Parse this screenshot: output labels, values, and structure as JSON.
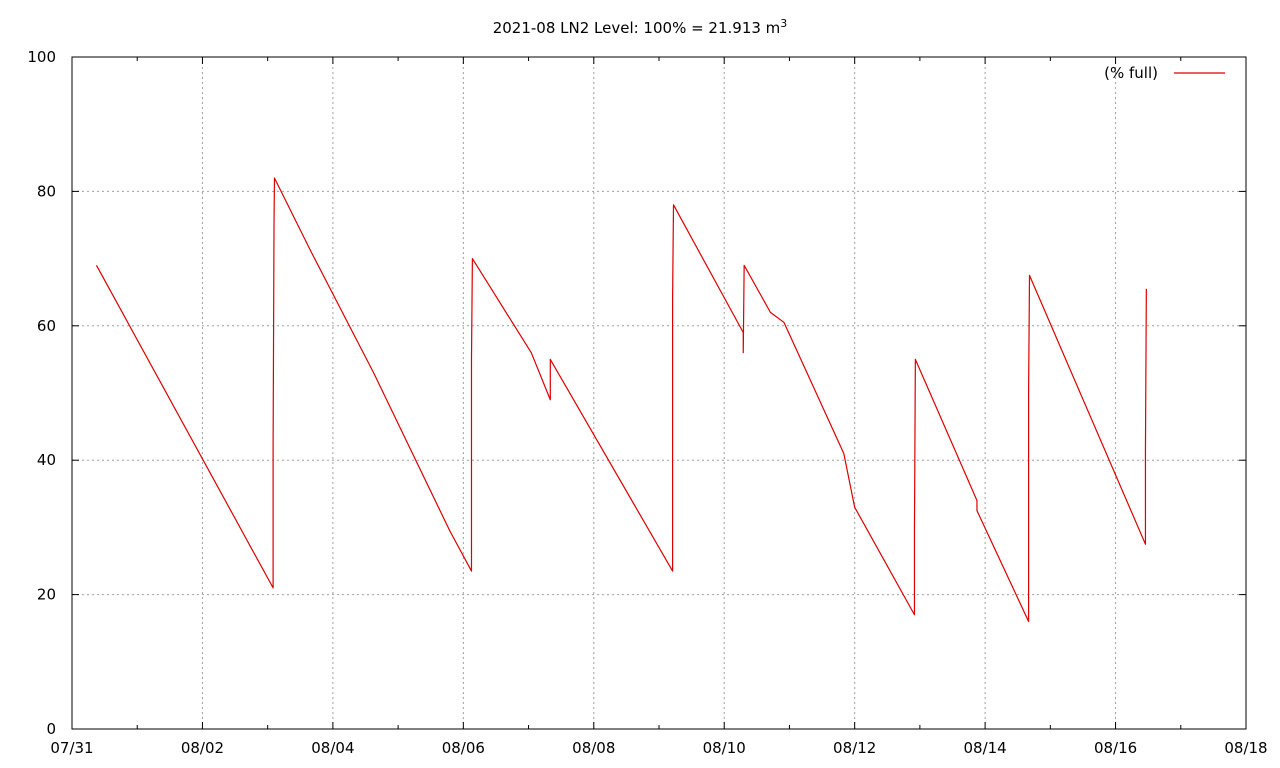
{
  "chart_data": {
    "type": "line",
    "title": {
      "main": "2021-08 LN2 Level: 100% = 21.913 m",
      "superscript": "3"
    },
    "xlabel": "",
    "ylabel": "",
    "x_unit": "date (month/day, 2021)",
    "xlim": [
      "2021-07-31",
      "2021-08-18"
    ],
    "ylim": [
      0,
      100
    ],
    "x_ticks": [
      {
        "date": "2021-07-31",
        "label": "07/31"
      },
      {
        "date": "2021-08-02",
        "label": "08/02"
      },
      {
        "date": "2021-08-04",
        "label": "08/04"
      },
      {
        "date": "2021-08-06",
        "label": "08/06"
      },
      {
        "date": "2021-08-08",
        "label": "08/08"
      },
      {
        "date": "2021-08-10",
        "label": "08/10"
      },
      {
        "date": "2021-08-12",
        "label": "08/12"
      },
      {
        "date": "2021-08-14",
        "label": "08/14"
      },
      {
        "date": "2021-08-16",
        "label": "08/16"
      },
      {
        "date": "2021-08-18",
        "label": "08/18"
      }
    ],
    "y_ticks": [
      {
        "value": 0,
        "label": "0"
      },
      {
        "value": 20,
        "label": "20"
      },
      {
        "value": 40,
        "label": "40"
      },
      {
        "value": 60,
        "label": "60"
      },
      {
        "value": 80,
        "label": "80"
      },
      {
        "value": 100,
        "label": "100"
      }
    ],
    "grid": true,
    "legend": {
      "placement": "top-right"
    },
    "series": [
      {
        "name": "(% full)",
        "color": "#dd0000",
        "points": [
          {
            "x": "2021-07-31 09:00",
            "y": 69
          },
          {
            "x": "2021-08-03 02:00",
            "y": 21
          },
          {
            "x": "2021-08-03 02:00",
            "y": 42
          },
          {
            "x": "2021-08-03 02:20",
            "y": 75
          },
          {
            "x": "2021-08-03 02:30",
            "y": 82
          },
          {
            "x": "2021-08-03 16:00",
            "y": 71
          },
          {
            "x": "2021-08-04 15:00",
            "y": 53
          },
          {
            "x": "2021-08-05 19:00",
            "y": 29.5
          },
          {
            "x": "2021-08-06 03:00",
            "y": 23.5
          },
          {
            "x": "2021-08-06 03:00",
            "y": 55
          },
          {
            "x": "2021-08-06 03:20",
            "y": 70
          },
          {
            "x": "2021-08-07 01:00",
            "y": 56
          },
          {
            "x": "2021-08-07 08:00",
            "y": 49
          },
          {
            "x": "2021-08-07 08:00",
            "y": 55
          },
          {
            "x": "2021-08-09 05:00",
            "y": 23.5
          },
          {
            "x": "2021-08-09 05:00",
            "y": 64
          },
          {
            "x": "2021-08-09 05:20",
            "y": 78
          },
          {
            "x": "2021-08-10 07:00",
            "y": 59
          },
          {
            "x": "2021-08-10 07:00",
            "y": 56
          },
          {
            "x": "2021-08-10 07:20",
            "y": 69
          },
          {
            "x": "2021-08-10 17:00",
            "y": 62
          },
          {
            "x": "2021-08-10 22:00",
            "y": 60.5
          },
          {
            "x": "2021-08-11 20:00",
            "y": 41
          },
          {
            "x": "2021-08-12 00:00",
            "y": 33
          },
          {
            "x": "2021-08-12 22:00",
            "y": 17
          },
          {
            "x": "2021-08-12 22:00",
            "y": 29.5
          },
          {
            "x": "2021-08-12 22:20",
            "y": 55
          },
          {
            "x": "2021-08-13 21:00",
            "y": 34
          },
          {
            "x": "2021-08-13 21:00",
            "y": 32.5
          },
          {
            "x": "2021-08-14 16:00",
            "y": 16
          },
          {
            "x": "2021-08-14 16:00",
            "y": 50
          },
          {
            "x": "2021-08-14 16:20",
            "y": 67.5
          },
          {
            "x": "2021-08-16 11:00",
            "y": 27.5
          },
          {
            "x": "2021-08-16 11:00",
            "y": 41.5
          },
          {
            "x": "2021-08-16 11:20",
            "y": 65.5
          }
        ]
      }
    ]
  }
}
